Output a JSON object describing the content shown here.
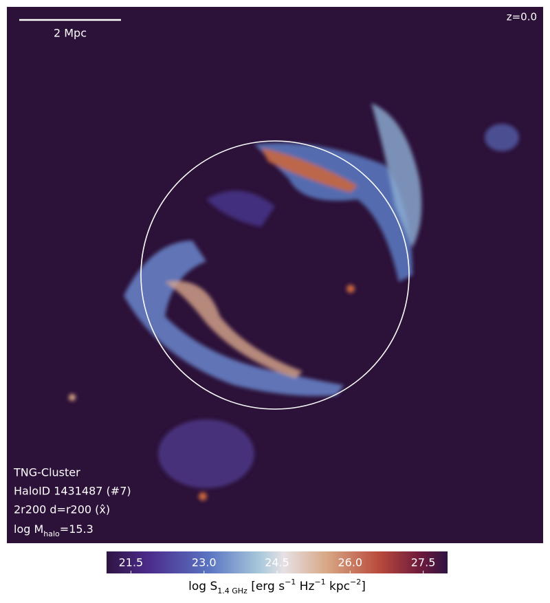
{
  "scale_bar": {
    "label": "2 Mpc"
  },
  "redshift": "z=0.0",
  "annotations": [
    "TNG-Cluster",
    "HaloID 1431487 (#7)",
    "2r200 d=r200 (x̂)"
  ],
  "mass_annotation": [
    {
      "text": "log M"
    },
    {
      "text": "halo",
      "style": "sub"
    },
    {
      "text": "=15.3"
    }
  ],
  "colorbar": {
    "lim": [
      21,
      28
    ],
    "ticks": [
      21.5,
      {
        "value": 23,
        "label": "23.0"
      },
      24.5,
      {
        "value": 26,
        "label": "26.0"
      },
      27.5
    ],
    "label": [
      {
        "text": "log S"
      },
      {
        "text": "1.4 GHz",
        "style": "sub"
      },
      {
        "text": " [erg s"
      },
      {
        "text": "−1",
        "style": "sup"
      },
      {
        "text": " Hz"
      },
      {
        "text": "−1",
        "style": "sup"
      },
      {
        "text": " kpc"
      },
      {
        "text": "−2",
        "style": "sup"
      },
      {
        "text": "]"
      }
    ]
  }
}
